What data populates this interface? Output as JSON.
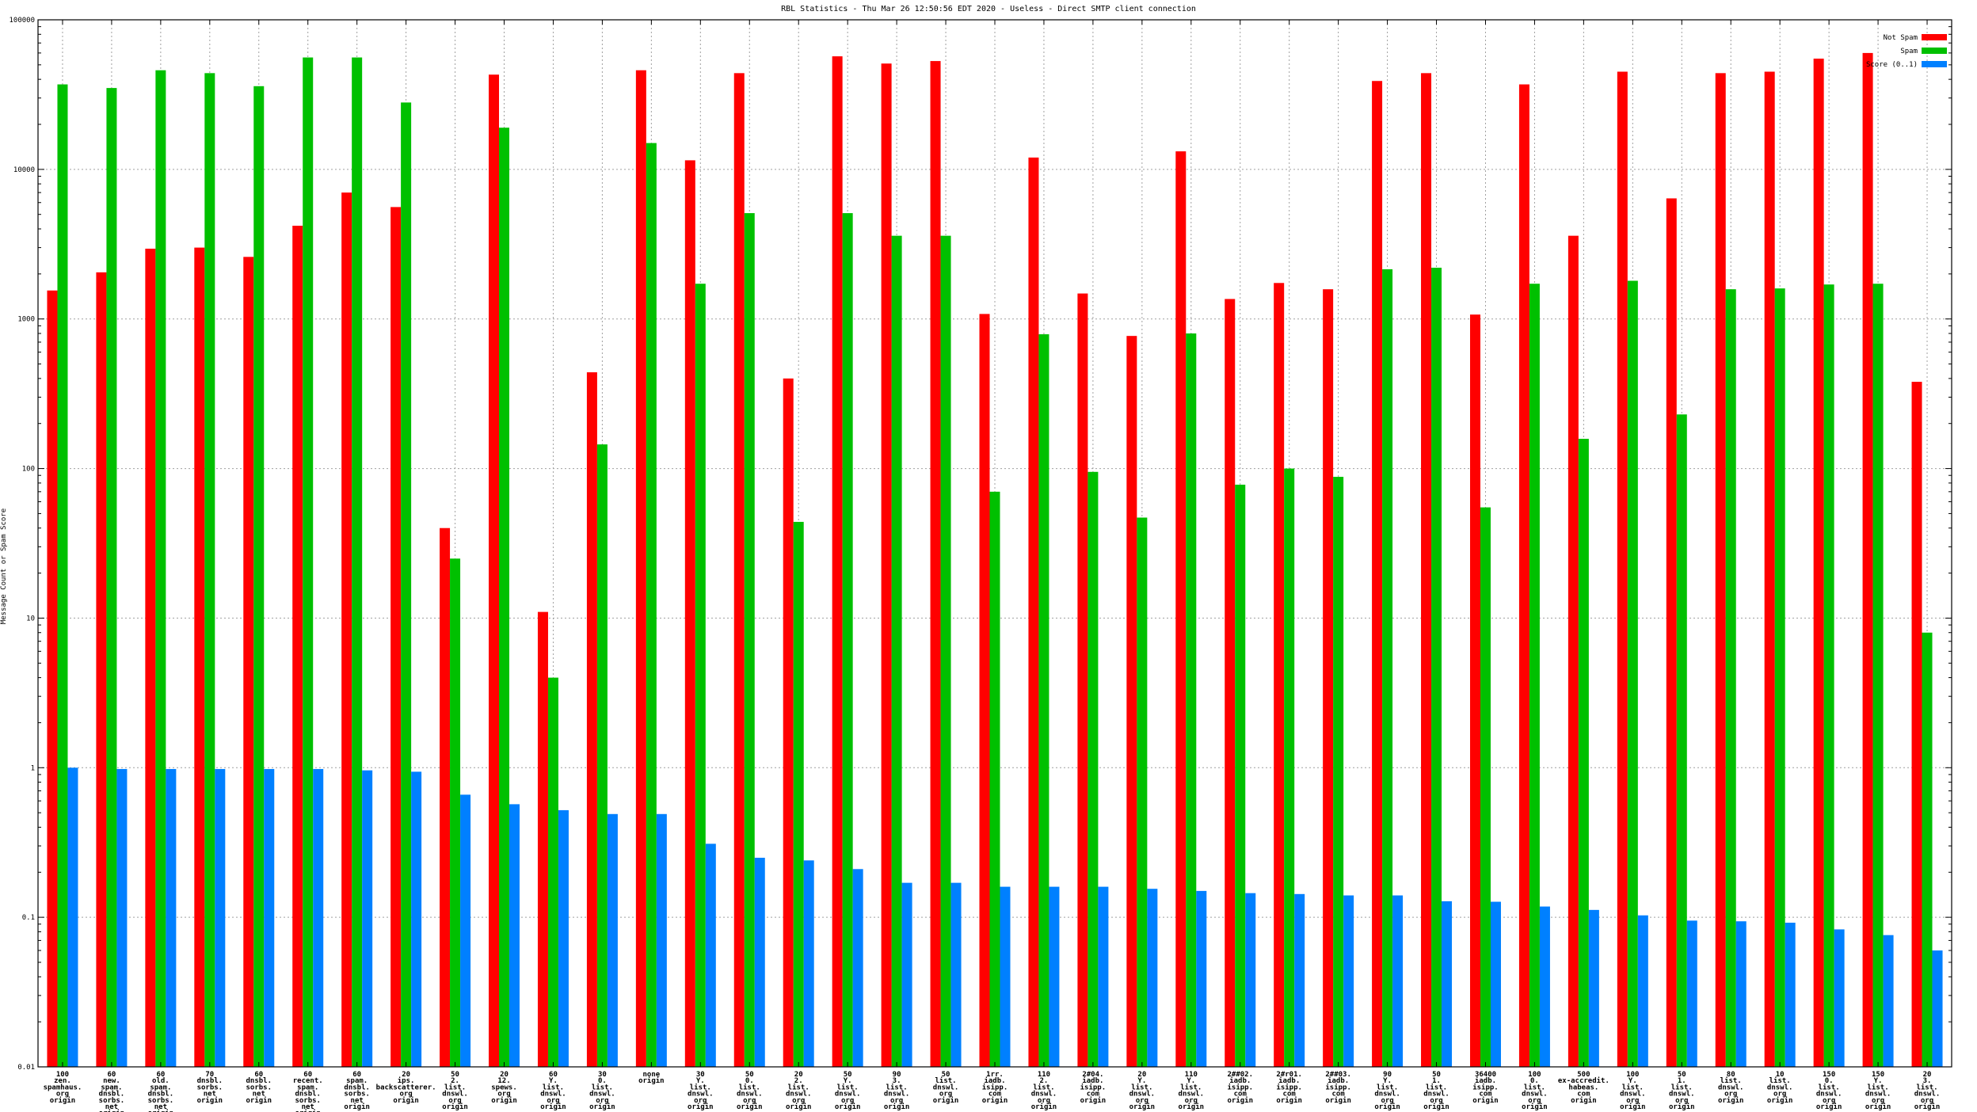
{
  "chart_data": {
    "type": "bar",
    "title": "RBL Statistics - Thu Mar 26 12:50:56 EDT 2020 - Useless - Direct SMTP client connection",
    "ylabel": "Message Count or Spam Score",
    "xlabel": "",
    "yscale": "log",
    "ylim": [
      0.01,
      100000
    ],
    "yticks": [
      0.01,
      0.1,
      1,
      10,
      100,
      1000,
      10000,
      100000
    ],
    "ytick_labels": [
      "0.01",
      "0.1",
      "1",
      "10",
      "100",
      "1000",
      "10000",
      "100000"
    ],
    "grid": true,
    "legend_position": "top-right",
    "categories": [
      [
        "100",
        "zen.",
        "spamhaus.",
        "org",
        "origin"
      ],
      [
        "60",
        "new.",
        "spam.",
        "dnsbl.",
        "sorbs.",
        "net",
        "origin"
      ],
      [
        "60",
        "old.",
        "spam.",
        "dnsbl.",
        "sorbs.",
        "net",
        "origin"
      ],
      [
        "70",
        "dnsbl.",
        "sorbs.",
        "net",
        "origin"
      ],
      [
        "60",
        "dnsbl.",
        "sorbs.",
        "net",
        "origin"
      ],
      [
        "60",
        "recent.",
        "spam.",
        "dnsbl.",
        "sorbs.",
        "net",
        "origin"
      ],
      [
        "60",
        "spam.",
        "dnsbl.",
        "sorbs.",
        "net",
        "origin"
      ],
      [
        "20",
        "ips.",
        "backscatterer.",
        "org",
        "origin"
      ],
      [
        "50",
        "2.",
        "list.",
        "dnswl.",
        "org",
        "origin"
      ],
      [
        "20",
        "12.",
        "spews.",
        "org",
        "origin"
      ],
      [
        "60",
        "Y.",
        "list.",
        "dnswl.",
        "org",
        "origin"
      ],
      [
        "30",
        "0.",
        "list.",
        "dnswl.",
        "org",
        "origin"
      ],
      [
        "none",
        "origin"
      ],
      [
        "30",
        "Y.",
        "list.",
        "dnswl.",
        "org",
        "origin"
      ],
      [
        "50",
        "0.",
        "list.",
        "dnswl.",
        "org",
        "origin"
      ],
      [
        "20",
        "2.",
        "list.",
        "dnswl.",
        "org",
        "origin"
      ],
      [
        "50",
        "Y.",
        "list.",
        "dnswl.",
        "org",
        "origin"
      ],
      [
        "90",
        "3.",
        "list.",
        "dnswl.",
        "org",
        "origin"
      ],
      [
        "50",
        "list.",
        "dnswl.",
        "org",
        "origin"
      ],
      [
        "1rr.",
        "iadb.",
        "isipp.",
        "com",
        "origin"
      ],
      [
        "110",
        "2.",
        "list.",
        "dnswl.",
        "org",
        "origin"
      ],
      [
        "2#04.",
        "iadb.",
        "isipp.",
        "com",
        "origin"
      ],
      [
        "20",
        "Y.",
        "list.",
        "dnswl.",
        "org",
        "origin"
      ],
      [
        "110",
        "Y.",
        "list.",
        "dnswl.",
        "org",
        "origin"
      ],
      [
        "2##02.",
        "iadb.",
        "isipp.",
        "com",
        "origin"
      ],
      [
        "2#r01.",
        "iadb.",
        "isipp.",
        "com",
        "origin"
      ],
      [
        "2##03.",
        "iadb.",
        "isipp.",
        "com",
        "origin"
      ],
      [
        "90",
        "Y.",
        "list.",
        "dnswl.",
        "org",
        "origin"
      ],
      [
        "50",
        "1.",
        "list.",
        "dnswl.",
        "org",
        "origin"
      ],
      [
        "36400",
        "iadb.",
        "isipp.",
        "com",
        "origin"
      ],
      [
        "100",
        "0.",
        "list.",
        "dnswl.",
        "org",
        "origin"
      ],
      [
        "500",
        "ex-accredit.",
        "habeas.",
        "com",
        "origin"
      ],
      [
        "100",
        "Y.",
        "list.",
        "dnswl.",
        "org",
        "origin"
      ],
      [
        "50",
        "1.",
        "list.",
        "dnswl.",
        "org",
        "origin"
      ],
      [
        "80",
        "list.",
        "dnswl.",
        "org",
        "origin"
      ],
      [
        "10",
        "list.",
        "dnswl.",
        "org",
        "origin"
      ],
      [
        "150",
        "0.",
        "list.",
        "dnswl.",
        "org",
        "origin"
      ],
      [
        "150",
        "Y.",
        "list.",
        "dnswl.",
        "org",
        "origin"
      ],
      [
        "20",
        "3.",
        "list.",
        "dnswl.",
        "org",
        "origin"
      ]
    ],
    "series": [
      {
        "name": "Not Spam",
        "color": "#ff0000",
        "values": [
          1550,
          2050,
          2950,
          3000,
          2600,
          4200,
          7000,
          5600,
          40,
          43000,
          11,
          440,
          46000,
          11500,
          44000,
          400,
          57000,
          51000,
          53000,
          1080,
          12000,
          1480,
          770,
          13200,
          1360,
          1740,
          1580,
          39000,
          44000,
          1070,
          37000,
          3600,
          45000,
          6400,
          44000,
          45000,
          55000,
          60000,
          380
        ]
      },
      {
        "name": "Spam",
        "color": "#00c000",
        "values": [
          37000,
          35000,
          46000,
          44000,
          36000,
          56000,
          56000,
          28000,
          25,
          19000,
          4,
          145,
          15000,
          1720,
          5100,
          44,
          5100,
          3600,
          3600,
          70,
          790,
          95,
          47,
          800,
          78,
          100,
          88,
          2150,
          2200,
          55,
          1720,
          158,
          1800,
          230,
          1580,
          1600,
          1700,
          1720,
          8
        ]
      },
      {
        "name": "Score (0..1)",
        "color": "#0080ff",
        "values": [
          1.0,
          0.98,
          0.98,
          0.98,
          0.98,
          0.98,
          0.96,
          0.94,
          0.66,
          0.57,
          0.52,
          0.49,
          0.49,
          0.31,
          0.25,
          0.24,
          0.21,
          0.17,
          0.17,
          0.16,
          0.16,
          0.16,
          0.155,
          0.15,
          0.145,
          0.143,
          0.14,
          0.14,
          0.128,
          0.127,
          0.118,
          0.112,
          0.103,
          0.095,
          0.094,
          0.092,
          0.083,
          0.076,
          0.06
        ]
      }
    ]
  }
}
